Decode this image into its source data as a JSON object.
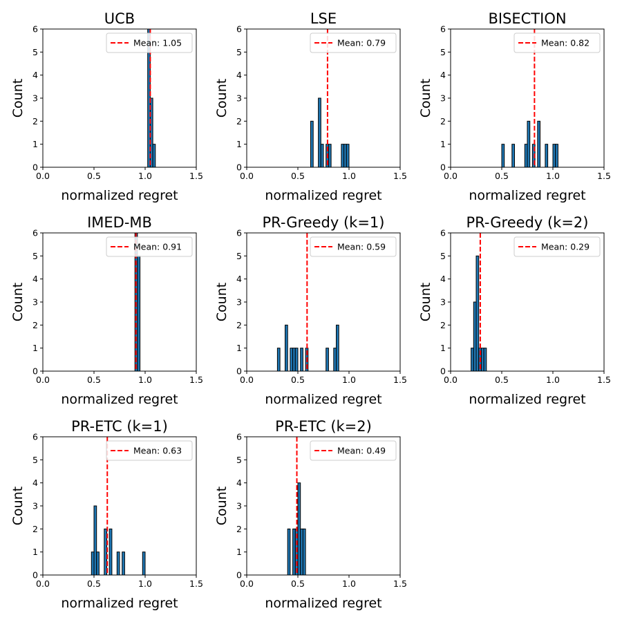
{
  "chart_data": [
    {
      "type": "histogram",
      "title": "UCB",
      "xlabel": "normalized regret",
      "ylabel": "Count",
      "xlim": [
        0,
        1.5
      ],
      "ylim": [
        0,
        6
      ],
      "xticks": [
        "0.0",
        "0.5",
        "1.0",
        "1.5"
      ],
      "yticks": [
        "0",
        "1",
        "2",
        "3",
        "4",
        "5",
        "6"
      ],
      "bin_width": 0.025,
      "bins": [
        {
          "x": 1.025,
          "count": 6
        },
        {
          "x": 1.05,
          "count": 3
        },
        {
          "x": 1.075,
          "count": 1
        }
      ],
      "mean": 1.05,
      "mean_label": "Mean: 1.05",
      "legend_position": "upper right"
    },
    {
      "type": "histogram",
      "title": "LSE",
      "xlabel": "normalized regret",
      "ylabel": "Count",
      "xlim": [
        0,
        1.5
      ],
      "ylim": [
        0,
        6
      ],
      "xticks": [
        "0.0",
        "0.5",
        "1.0",
        "1.5"
      ],
      "yticks": [
        "0",
        "1",
        "2",
        "3",
        "4",
        "5",
        "6"
      ],
      "bin_width": 0.025,
      "bins": [
        {
          "x": 0.625,
          "count": 2
        },
        {
          "x": 0.7,
          "count": 3
        },
        {
          "x": 0.725,
          "count": 1
        },
        {
          "x": 0.775,
          "count": 1
        },
        {
          "x": 0.8,
          "count": 1
        },
        {
          "x": 0.925,
          "count": 1
        },
        {
          "x": 0.95,
          "count": 1
        },
        {
          "x": 0.975,
          "count": 1
        }
      ],
      "mean": 0.79,
      "mean_label": "Mean: 0.79",
      "legend_position": "upper right"
    },
    {
      "type": "histogram",
      "title": "BISECTION",
      "xlabel": "normalized regret",
      "ylabel": "Count",
      "xlim": [
        0,
        1.5
      ],
      "ylim": [
        0,
        6
      ],
      "xticks": [
        "0.0",
        "0.5",
        "1.0",
        "1.5"
      ],
      "yticks": [
        "0",
        "1",
        "2",
        "3",
        "4",
        "5",
        "6"
      ],
      "bin_width": 0.025,
      "bins": [
        {
          "x": 0.5,
          "count": 1
        },
        {
          "x": 0.6,
          "count": 1
        },
        {
          "x": 0.725,
          "count": 1
        },
        {
          "x": 0.75,
          "count": 2
        },
        {
          "x": 0.8,
          "count": 1
        },
        {
          "x": 0.85,
          "count": 2
        },
        {
          "x": 0.925,
          "count": 1
        },
        {
          "x": 1.0,
          "count": 1
        },
        {
          "x": 1.025,
          "count": 1
        }
      ],
      "mean": 0.82,
      "mean_label": "Mean: 0.82",
      "legend_position": "upper right"
    },
    {
      "type": "histogram",
      "title": "IMED-MB",
      "xlabel": "normalized regret",
      "ylabel": "Count",
      "xlim": [
        0,
        1.5
      ],
      "ylim": [
        0,
        6
      ],
      "xticks": [
        "0.0",
        "0.5",
        "1.0",
        "1.5"
      ],
      "yticks": [
        "0",
        "1",
        "2",
        "3",
        "4",
        "5",
        "6"
      ],
      "bin_width": 0.025,
      "bins": [
        {
          "x": 0.9,
          "count": 6
        },
        {
          "x": 0.925,
          "count": 5
        }
      ],
      "mean": 0.91,
      "mean_label": "Mean: 0.91",
      "legend_position": "upper right"
    },
    {
      "type": "histogram",
      "title": "PR-Greedy (k=1)",
      "xlabel": "normalized regret",
      "ylabel": "Count",
      "xlim": [
        0,
        1.5
      ],
      "ylim": [
        0,
        6
      ],
      "xticks": [
        "0.0",
        "0.5",
        "1.0",
        "1.5"
      ],
      "yticks": [
        "0",
        "1",
        "2",
        "3",
        "4",
        "5",
        "6"
      ],
      "bin_width": 0.025,
      "bins": [
        {
          "x": 0.3,
          "count": 1
        },
        {
          "x": 0.375,
          "count": 2
        },
        {
          "x": 0.425,
          "count": 1
        },
        {
          "x": 0.45,
          "count": 1
        },
        {
          "x": 0.475,
          "count": 1
        },
        {
          "x": 0.525,
          "count": 1
        },
        {
          "x": 0.575,
          "count": 1
        },
        {
          "x": 0.775,
          "count": 1
        },
        {
          "x": 0.85,
          "count": 1
        },
        {
          "x": 0.875,
          "count": 2
        }
      ],
      "mean": 0.59,
      "mean_label": "Mean: 0.59",
      "legend_position": "upper right"
    },
    {
      "type": "histogram",
      "title": "PR-Greedy (k=2)",
      "xlabel": "normalized regret",
      "ylabel": "Count",
      "xlim": [
        0,
        1.5
      ],
      "ylim": [
        0,
        6
      ],
      "xticks": [
        "0.0",
        "0.5",
        "1.0",
        "1.5"
      ],
      "yticks": [
        "0",
        "1",
        "2",
        "3",
        "4",
        "5",
        "6"
      ],
      "bin_width": 0.025,
      "bins": [
        {
          "x": 0.2,
          "count": 1
        },
        {
          "x": 0.225,
          "count": 3
        },
        {
          "x": 0.25,
          "count": 5
        },
        {
          "x": 0.275,
          "count": 1
        },
        {
          "x": 0.3,
          "count": 1
        },
        {
          "x": 0.325,
          "count": 1
        }
      ],
      "mean": 0.29,
      "mean_label": "Mean: 0.29",
      "legend_position": "upper right"
    },
    {
      "type": "histogram",
      "title": "PR-ETC (k=1)",
      "xlabel": "normalized regret",
      "ylabel": "Count",
      "xlim": [
        0,
        1.5
      ],
      "ylim": [
        0,
        6
      ],
      "xticks": [
        "0.0",
        "0.5",
        "1.0",
        "1.5"
      ],
      "yticks": [
        "0",
        "1",
        "2",
        "3",
        "4",
        "5",
        "6"
      ],
      "bin_width": 0.025,
      "bins": [
        {
          "x": 0.475,
          "count": 1
        },
        {
          "x": 0.5,
          "count": 3
        },
        {
          "x": 0.525,
          "count": 1
        },
        {
          "x": 0.6,
          "count": 2
        },
        {
          "x": 0.65,
          "count": 2
        },
        {
          "x": 0.725,
          "count": 1
        },
        {
          "x": 0.775,
          "count": 1
        },
        {
          "x": 0.975,
          "count": 1
        }
      ],
      "mean": 0.63,
      "mean_label": "Mean: 0.63",
      "legend_position": "upper right"
    },
    {
      "type": "histogram",
      "title": "PR-ETC (k=2)",
      "xlabel": "normalized regret",
      "ylabel": "Count",
      "xlim": [
        0,
        1.5
      ],
      "ylim": [
        0,
        6
      ],
      "xticks": [
        "0.0",
        "0.5",
        "1.0",
        "1.5"
      ],
      "yticks": [
        "0",
        "1",
        "2",
        "3",
        "4",
        "5",
        "6"
      ],
      "bin_width": 0.025,
      "bins": [
        {
          "x": 0.4,
          "count": 2
        },
        {
          "x": 0.45,
          "count": 2
        },
        {
          "x": 0.475,
          "count": 2
        },
        {
          "x": 0.5,
          "count": 4
        },
        {
          "x": 0.525,
          "count": 2
        },
        {
          "x": 0.55,
          "count": 2
        }
      ],
      "mean": 0.49,
      "mean_label": "Mean: 0.49",
      "legend_position": "upper right"
    }
  ],
  "colors": {
    "bar_fill": "#1f77b4",
    "bar_edge": "#000000",
    "mean_line": "#ff0000"
  }
}
